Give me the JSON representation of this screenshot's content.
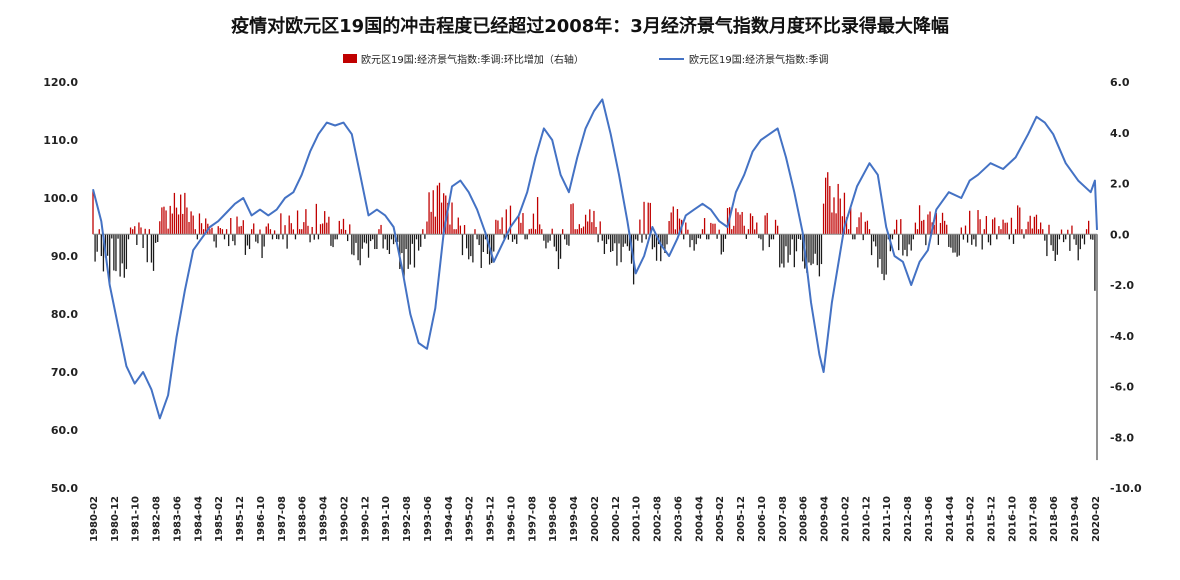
{
  "chart_data": {
    "type": "bar+line",
    "title": "疫情对欧元区19国的冲击程度已经超过2008年：3月经济景气指数月度环比录得最大降幅",
    "legend": [
      "欧元区19国:经济景气指数:季调:环比增加（右轴）",
      "欧元区19国:经济景气指数:季调"
    ],
    "legend_placement": "top",
    "y_left_ticks": [
      "120.0",
      "110.0",
      "100.0",
      "90.0",
      "80.0",
      "70.0",
      "60.0",
      "50.0"
    ],
    "y_left_range": [
      50,
      120
    ],
    "y_right_ticks": [
      "6.0",
      "4.0",
      "2.0",
      "0.0",
      "-2.0",
      "-4.0",
      "-6.0",
      "-8.0",
      "-10.0"
    ],
    "y_right_range": [
      -10,
      6
    ],
    "x_ticks": [
      "1980-02",
      "1980-12",
      "1981-10",
      "1982-08",
      "1983-06",
      "1984-04",
      "1985-02",
      "1985-12",
      "1986-10",
      "1987-08",
      "1988-06",
      "1989-04",
      "1990-02",
      "1990-12",
      "1991-10",
      "1992-08",
      "1993-06",
      "1994-04",
      "1995-02",
      "1995-12",
      "1996-10",
      "1997-08",
      "1998-06",
      "1999-04",
      "2000-02",
      "2000-12",
      "2001-10",
      "2002-08",
      "2003-06",
      "2004-04",
      "2005-02",
      "2005-12",
      "2006-10",
      "2007-08",
      "2008-06",
      "2009-04",
      "2010-02",
      "2010-12",
      "2011-10",
      "2012-08",
      "2013-06",
      "2014-04",
      "2015-02",
      "2015-12",
      "2016-10",
      "2017-08",
      "2018-06",
      "2019-04",
      "2020-02"
    ],
    "line_series": {
      "name": "欧元区19国:经济景气指数:季调",
      "color": "#4472c4",
      "points": [
        [
          "1980-02",
          101.5
        ],
        [
          "1980-06",
          96
        ],
        [
          "1980-10",
          85
        ],
        [
          "1981-02",
          78
        ],
        [
          "1981-06",
          71
        ],
        [
          "1981-10",
          68
        ],
        [
          "1982-02",
          70
        ],
        [
          "1982-06",
          67
        ],
        [
          "1982-10",
          62
        ],
        [
          "1983-02",
          66
        ],
        [
          "1983-06",
          76
        ],
        [
          "1983-10",
          84
        ],
        [
          "1984-02",
          91
        ],
        [
          "1984-06",
          93
        ],
        [
          "1984-10",
          95
        ],
        [
          "1985-02",
          96
        ],
        [
          "1985-06",
          97.5
        ],
        [
          "1985-10",
          99
        ],
        [
          "1986-02",
          100
        ],
        [
          "1986-06",
          97
        ],
        [
          "1986-10",
          98
        ],
        [
          "1987-02",
          97
        ],
        [
          "1987-06",
          98
        ],
        [
          "1987-10",
          100
        ],
        [
          "1988-02",
          101
        ],
        [
          "1988-06",
          104
        ],
        [
          "1988-10",
          108
        ],
        [
          "1989-02",
          111
        ],
        [
          "1989-06",
          113
        ],
        [
          "1989-10",
          112.5
        ],
        [
          "1990-02",
          113
        ],
        [
          "1990-06",
          111
        ],
        [
          "1990-10",
          104
        ],
        [
          "1991-02",
          97
        ],
        [
          "1991-06",
          98
        ],
        [
          "1991-10",
          97
        ],
        [
          "1992-02",
          95
        ],
        [
          "1992-06",
          88
        ],
        [
          "1992-10",
          80
        ],
        [
          "1993-02",
          75
        ],
        [
          "1993-06",
          74
        ],
        [
          "1993-10",
          81
        ],
        [
          "1994-02",
          94
        ],
        [
          "1994-06",
          102
        ],
        [
          "1994-10",
          103
        ],
        [
          "1995-02",
          101
        ],
        [
          "1995-06",
          98
        ],
        [
          "1995-10",
          94
        ],
        [
          "1996-02",
          89
        ],
        [
          "1996-06",
          92
        ],
        [
          "1996-10",
          95
        ],
        [
          "1997-02",
          97
        ],
        [
          "1997-06",
          101
        ],
        [
          "1997-10",
          107
        ],
        [
          "1998-02",
          112
        ],
        [
          "1998-06",
          110
        ],
        [
          "1998-10",
          104
        ],
        [
          "1999-02",
          101
        ],
        [
          "1999-06",
          107
        ],
        [
          "1999-10",
          112
        ],
        [
          "2000-02",
          115
        ],
        [
          "2000-06",
          117
        ],
        [
          "2000-10",
          111
        ],
        [
          "2001-02",
          104
        ],
        [
          "2001-06",
          96
        ],
        [
          "2001-10",
          87
        ],
        [
          "2002-02",
          90
        ],
        [
          "2002-06",
          95
        ],
        [
          "2002-10",
          92
        ],
        [
          "2003-02",
          90
        ],
        [
          "2003-06",
          93
        ],
        [
          "2003-10",
          97
        ],
        [
          "2004-02",
          98
        ],
        [
          "2004-06",
          99
        ],
        [
          "2004-10",
          98
        ],
        [
          "2005-02",
          96
        ],
        [
          "2005-06",
          95
        ],
        [
          "2005-10",
          101
        ],
        [
          "2006-02",
          104
        ],
        [
          "2006-06",
          108
        ],
        [
          "2006-10",
          110
        ],
        [
          "2007-02",
          111
        ],
        [
          "2007-06",
          112
        ],
        [
          "2007-10",
          107
        ],
        [
          "2008-02",
          101
        ],
        [
          "2008-06",
          94
        ],
        [
          "2008-10",
          82
        ],
        [
          "2009-02",
          73
        ],
        [
          "2009-04",
          70
        ],
        [
          "2009-08",
          82
        ],
        [
          "2010-02",
          95
        ],
        [
          "2010-08",
          102
        ],
        [
          "2011-02",
          106
        ],
        [
          "2011-06",
          104
        ],
        [
          "2011-10",
          95
        ],
        [
          "2012-02",
          90
        ],
        [
          "2012-06",
          89
        ],
        [
          "2012-10",
          85
        ],
        [
          "2013-02",
          89
        ],
        [
          "2013-06",
          91
        ],
        [
          "2013-10",
          98
        ],
        [
          "2014-04",
          101
        ],
        [
          "2014-10",
          100
        ],
        [
          "2015-02",
          103
        ],
        [
          "2015-06",
          104
        ],
        [
          "2015-12",
          106
        ],
        [
          "2016-06",
          105
        ],
        [
          "2016-12",
          107
        ],
        [
          "2017-06",
          111
        ],
        [
          "2017-10",
          114
        ],
        [
          "2018-02",
          113
        ],
        [
          "2018-06",
          111
        ],
        [
          "2018-12",
          106
        ],
        [
          "2019-06",
          103
        ],
        [
          "2019-12",
          101
        ],
        [
          "2020-02",
          103
        ],
        [
          "2020-03",
          94.5
        ]
      ]
    },
    "bar_series": {
      "name": "欧元区19国:经济景气指数:季调:环比增加（右轴）",
      "color_positive": "#c00000",
      "color_negative": "#1a1a1a",
      "note": "monthly change values estimated from the image; right axis"
    }
  }
}
